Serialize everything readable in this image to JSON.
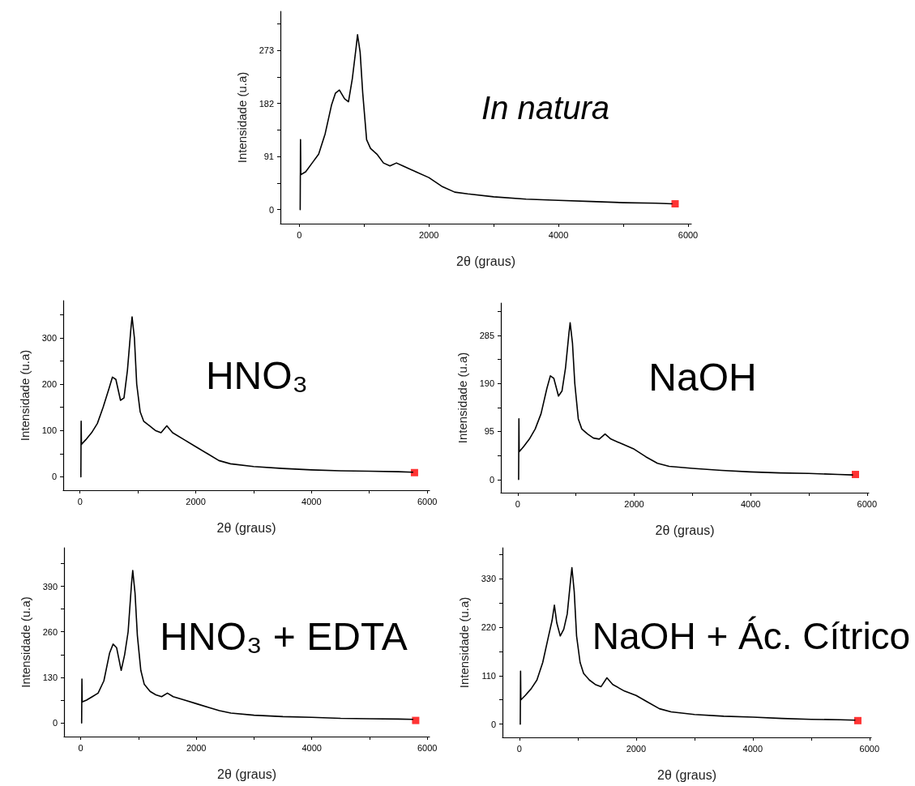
{
  "chart_data": [
    {
      "type": "line",
      "title": "In natura",
      "xlabel": "2θ (graus)",
      "ylabel": "Intensidade (u.a)",
      "xlim": [
        -290,
        6050
      ],
      "ylim": [
        -24,
        340
      ],
      "xticks": [
        0,
        {
          "value": 1000,
          "label": null
        },
        2000,
        {
          "value": 3000,
          "label": null
        },
        4000,
        {
          "value": 5000,
          "label": null
        },
        6000
      ],
      "yticks": [
        0,
        {
          "value": 45.5,
          "label": null
        },
        91,
        {
          "value": 136.5,
          "label": null
        },
        182,
        {
          "value": 227.5,
          "label": null
        },
        273,
        {
          "value": 318.5,
          "label": null
        }
      ],
      "marker": "none",
      "line_style": "solid",
      "series": [
        {
          "color": "#000000",
          "x": [
            15,
            20,
            25,
            100,
            200,
            300,
            400,
            500,
            560,
            620,
            700,
            760,
            820,
            880,
            900,
            940,
            980,
            1040,
            1100,
            1200,
            1300,
            1400,
            1500,
            1600,
            1800,
            2000,
            2200,
            2400,
            2600,
            3000,
            3500,
            4000,
            4500,
            5000,
            5500,
            5750
          ],
          "values": [
            0,
            120,
            60,
            65,
            80,
            95,
            130,
            180,
            200,
            205,
            190,
            185,
            225,
            280,
            300,
            270,
            200,
            120,
            105,
            95,
            80,
            75,
            80,
            75,
            65,
            55,
            40,
            30,
            27,
            22,
            18,
            16,
            14,
            12,
            11,
            10
          ]
        },
        {
          "type": "scatter",
          "marker": "square",
          "color": "#ff0000",
          "x": [
            5800
          ],
          "values": [
            10
          ]
        }
      ]
    },
    {
      "type": "line",
      "title": "HNO₃",
      "xlabel": "2θ (graus)",
      "ylabel": "Intensidade (u.a)",
      "xlim": [
        -290,
        6040
      ],
      "ylim": [
        -29,
        380
      ],
      "xticks": [
        0,
        {
          "value": 1000,
          "label": null
        },
        2000,
        {
          "value": 3000,
          "label": null
        },
        4000,
        {
          "value": 5000,
          "label": null
        },
        6000
      ],
      "yticks": [
        0,
        {
          "value": 50,
          "label": null
        },
        100,
        {
          "value": 150,
          "label": null
        },
        200,
        {
          "value": 250,
          "label": null
        },
        300,
        {
          "value": 350,
          "label": null
        }
      ],
      "marker": "none",
      "line_style": "solid",
      "series": [
        {
          "color": "#000000",
          "x": [
            15,
            20,
            25,
            100,
            200,
            300,
            400,
            500,
            560,
            620,
            700,
            760,
            820,
            880,
            900,
            940,
            980,
            1040,
            1100,
            1200,
            1300,
            1400,
            1500,
            1600,
            1800,
            2000,
            2200,
            2400,
            2600,
            3000,
            3500,
            4000,
            4500,
            5000,
            5500,
            5750
          ],
          "values": [
            0,
            120,
            70,
            80,
            95,
            115,
            150,
            190,
            215,
            210,
            165,
            170,
            230,
            320,
            345,
            300,
            200,
            140,
            120,
            110,
            100,
            95,
            110,
            95,
            80,
            65,
            50,
            35,
            28,
            22,
            18,
            15,
            13,
            12,
            11,
            10
          ]
        },
        {
          "type": "scatter",
          "marker": "square",
          "color": "#ff0000",
          "x": [
            5780
          ],
          "values": [
            9
          ]
        }
      ]
    },
    {
      "type": "line",
      "title": "NaOH",
      "xlabel": "2θ (graus)",
      "ylabel": "Intensidade (u.a)",
      "xlim": [
        -290,
        6030
      ],
      "ylim": [
        -26,
        349
      ],
      "xticks": [
        0,
        {
          "value": 1000,
          "label": null
        },
        2000,
        {
          "value": 3000,
          "label": null
        },
        4000,
        {
          "value": 5000,
          "label": null
        },
        6000
      ],
      "yticks": [
        0,
        {
          "value": 47.5,
          "label": null
        },
        95,
        {
          "value": 142.5,
          "label": null
        },
        190,
        {
          "value": 237.5,
          "label": null
        },
        285,
        {
          "value": 332.5,
          "label": null
        }
      ],
      "marker": "none",
      "line_style": "solid",
      "series": [
        {
          "color": "#000000",
          "x": [
            15,
            20,
            25,
            100,
            200,
            300,
            400,
            500,
            560,
            620,
            700,
            760,
            820,
            880,
            900,
            940,
            980,
            1040,
            1100,
            1200,
            1300,
            1400,
            1500,
            1600,
            1800,
            2000,
            2200,
            2400,
            2600,
            3000,
            3500,
            4000,
            4500,
            5000,
            5500,
            5750
          ],
          "values": [
            0,
            120,
            55,
            65,
            80,
            100,
            130,
            180,
            205,
            200,
            165,
            175,
            220,
            290,
            310,
            270,
            190,
            120,
            100,
            90,
            82,
            80,
            90,
            80,
            70,
            60,
            45,
            32,
            26,
            22,
            18,
            15,
            13,
            12,
            10,
            9
          ]
        },
        {
          "type": "scatter",
          "marker": "square",
          "color": "#ff0000",
          "x": [
            5800
          ],
          "values": [
            10
          ]
        }
      ]
    },
    {
      "type": "line",
      "title": "HNO₃ + EDTA",
      "xlabel": "2θ (graus)",
      "ylabel": "Intensidade (u.a)",
      "xlim": [
        -290,
        6040
      ],
      "ylim": [
        -39,
        500
      ],
      "xticks": [
        0,
        {
          "value": 1000,
          "label": null
        },
        2000,
        {
          "value": 3000,
          "label": null
        },
        4000,
        {
          "value": 5000,
          "label": null
        },
        6000
      ],
      "yticks": [
        0,
        {
          "value": 65,
          "label": null
        },
        130,
        {
          "value": 195,
          "label": null
        },
        260,
        {
          "value": 325,
          "label": null
        },
        390,
        {
          "value": 455,
          "label": null
        }
      ],
      "marker": "none",
      "line_style": "solid",
      "series": [
        {
          "color": "#000000",
          "x": [
            15,
            20,
            25,
            100,
            200,
            300,
            400,
            500,
            560,
            620,
            700,
            760,
            820,
            880,
            900,
            940,
            980,
            1040,
            1100,
            1200,
            1300,
            1400,
            1500,
            1600,
            1800,
            2000,
            2200,
            2400,
            2600,
            3000,
            3500,
            4000,
            4500,
            5000,
            5500,
            5750
          ],
          "values": [
            0,
            125,
            60,
            65,
            75,
            85,
            120,
            200,
            225,
            215,
            150,
            195,
            260,
            400,
            435,
            370,
            250,
            150,
            110,
            90,
            80,
            75,
            85,
            75,
            65,
            55,
            45,
            35,
            28,
            22,
            18,
            16,
            13,
            12,
            11,
            10
          ]
        },
        {
          "type": "scatter",
          "marker": "square",
          "color": "#ff0000",
          "x": [
            5800
          ],
          "values": [
            7
          ]
        }
      ]
    },
    {
      "type": "line",
      "title": "NaOH + Ác. Cítrico",
      "xlabel": "2θ (graus)",
      "ylabel": "Intensidade (u.a)",
      "xlim": [
        -290,
        6030
      ],
      "ylim": [
        -30,
        400
      ],
      "xticks": [
        0,
        {
          "value": 1000,
          "label": null
        },
        2000,
        {
          "value": 3000,
          "label": null
        },
        4000,
        {
          "value": 5000,
          "label": null
        },
        6000
      ],
      "yticks": [
        0,
        {
          "value": 55,
          "label": null
        },
        110,
        {
          "value": 165,
          "label": null
        },
        220,
        {
          "value": 275,
          "label": null
        },
        330,
        {
          "value": 385,
          "label": null
        }
      ],
      "marker": "none",
      "line_style": "solid",
      "series": [
        {
          "color": "#000000",
          "x": [
            15,
            20,
            25,
            100,
            200,
            300,
            400,
            500,
            560,
            600,
            640,
            700,
            760,
            820,
            880,
            900,
            940,
            980,
            1040,
            1100,
            1200,
            1300,
            1400,
            1500,
            1600,
            1800,
            2000,
            2200,
            2400,
            2600,
            3000,
            3500,
            4000,
            4500,
            5000,
            5500,
            5750
          ],
          "values": [
            0,
            120,
            55,
            65,
            80,
            100,
            140,
            200,
            235,
            270,
            230,
            200,
            215,
            250,
            330,
            355,
            300,
            200,
            140,
            115,
            100,
            90,
            85,
            105,
            90,
            75,
            65,
            50,
            35,
            28,
            22,
            18,
            16,
            13,
            11,
            10,
            9
          ]
        },
        {
          "type": "scatter",
          "marker": "square",
          "color": "#ff0000",
          "x": [
            5800
          ],
          "values": [
            8
          ]
        }
      ]
    }
  ]
}
